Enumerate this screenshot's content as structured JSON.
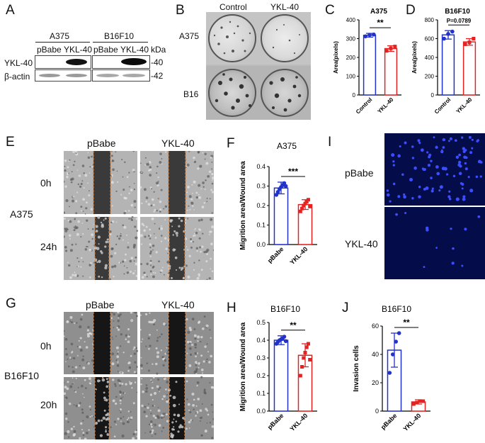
{
  "panels": {
    "A": {
      "letter": "A",
      "groups": [
        "A375",
        "B16F10"
      ],
      "lanes": [
        "pBabe",
        "YKL-40",
        "pBabe",
        "YKL-40"
      ],
      "unit": "kDa",
      "rows": [
        "YKL-40",
        "β-actin"
      ],
      "markers": [
        "-40",
        "-42"
      ]
    },
    "B": {
      "letter": "B",
      "cols": [
        "Control",
        "YKL-40"
      ],
      "rows": [
        "A375",
        "B16"
      ]
    },
    "E": {
      "letter": "E",
      "cols": [
        "pBabe",
        "YKL-40"
      ],
      "times": [
        "0h",
        "24h"
      ],
      "cell": "A375"
    },
    "G": {
      "letter": "G",
      "cols": [
        "pBabe",
        "YKL-40"
      ],
      "times": [
        "0h",
        "20h"
      ],
      "cell": "B16F10"
    },
    "I": {
      "letter": "I",
      "rows": [
        "pBabe",
        "YKL-40"
      ]
    }
  },
  "chart_data": [
    {
      "panel": "C",
      "type": "bar",
      "title": "A375",
      "categories": [
        "Control",
        "YKL-40"
      ],
      "values": [
        318,
        247
      ],
      "errors": [
        10,
        15
      ],
      "points": [
        [
          312,
          320,
          322
        ],
        [
          235,
          248,
          258
        ]
      ],
      "colors": [
        "#2233cc",
        "#e52222"
      ],
      "ylabel": "Area(pixels)",
      "ylim": [
        0,
        400
      ],
      "yticks": [
        0,
        100,
        200,
        300,
        400
      ],
      "significance": "**"
    },
    {
      "panel": "D",
      "type": "bar",
      "title": "B16F10",
      "categories": [
        "Control",
        "YKL-40"
      ],
      "values": [
        640,
        565
      ],
      "errors": [
        45,
        35
      ],
      "points": [
        [
          600,
          650,
          675
        ],
        [
          540,
          560,
          600
        ]
      ],
      "colors": [
        "#2233cc",
        "#e52222"
      ],
      "ylabel": "Area(pixels)",
      "ylim": [
        0,
        800
      ],
      "yticks": [
        0,
        200,
        400,
        600,
        800
      ],
      "significance": "P=0.0789"
    },
    {
      "panel": "F",
      "type": "bar",
      "title": "A375",
      "categories": [
        "pBabe",
        "YKL-40"
      ],
      "values": [
        0.29,
        0.205
      ],
      "errors": [
        0.03,
        0.025
      ],
      "points": [
        [
          0.255,
          0.27,
          0.285,
          0.295,
          0.305,
          0.315,
          0.3
        ],
        [
          0.17,
          0.185,
          0.2,
          0.21,
          0.22,
          0.23,
          0.195
        ]
      ],
      "colors": [
        "#2233cc",
        "#e52222"
      ],
      "ylabel": "Migrition area/Wound area",
      "ylim": [
        0,
        0.4
      ],
      "yticks": [
        0.0,
        0.1,
        0.2,
        0.3,
        0.4
      ],
      "significance": "***"
    },
    {
      "panel": "H",
      "type": "bar",
      "title": "B16F10",
      "categories": [
        "pBabe",
        "YKL-40"
      ],
      "values": [
        0.4,
        0.315
      ],
      "errors": [
        0.025,
        0.065
      ],
      "points": [
        [
          0.38,
          0.39,
          0.4,
          0.405,
          0.41,
          0.42,
          0.395
        ],
        [
          0.2,
          0.25,
          0.3,
          0.33,
          0.36,
          0.38,
          0.29
        ]
      ],
      "colors": [
        "#2233cc",
        "#e52222"
      ],
      "ylabel": "Migrition area/Wound area",
      "ylim": [
        0,
        0.5
      ],
      "yticks": [
        0.0,
        0.1,
        0.2,
        0.3,
        0.4,
        0.5
      ],
      "significance": "**"
    },
    {
      "panel": "J",
      "type": "bar",
      "title": "B16F10",
      "categories": [
        "pBabe",
        "YKL-40"
      ],
      "values": [
        43,
        6.5
      ],
      "errors": [
        12,
        1.5
      ],
      "points": [
        [
          27,
          40,
          49,
          55
        ],
        [
          5,
          6,
          7,
          7
        ]
      ],
      "colors": [
        "#2233cc",
        "#e52222"
      ],
      "ylabel": "Invasion cells",
      "ylim": [
        0,
        60
      ],
      "yticks": [
        0,
        20,
        40,
        60
      ],
      "significance": "**"
    }
  ]
}
